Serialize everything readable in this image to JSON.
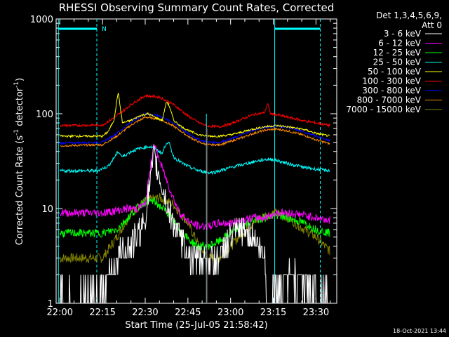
{
  "chart_data": {
    "type": "line",
    "title": "RHESSI Observing Summary Count Rates, Corrected",
    "xlabel": "Start Time (25-Jul-05 21:58:42)",
    "ylabel_main": "Corrected Count Rate (s",
    "ylabel_exp1": "-1",
    "ylabel_mid": " detector",
    "ylabel_exp2": "-1",
    "ylabel_end": ")",
    "yscale": "log",
    "ylim": [
      1,
      1000
    ],
    "xlim_minutes": [
      -1.3,
      37.3
    ],
    "x_tick_labels": [
      "22:00",
      "22:15",
      "22:30",
      "22:45",
      "23:00",
      "23:15",
      "23:30"
    ],
    "x_tick_minutes": [
      0,
      15,
      30,
      45,
      60,
      75,
      90
    ],
    "y_tick_labels": [
      "1",
      "10",
      "100",
      "1000"
    ],
    "y_tick_values": [
      1,
      10,
      100,
      1000
    ],
    "legend_header": [
      "Det 1,3,4,5,6,9,",
      "Att 0"
    ],
    "legend_position": "right",
    "footer": "18-Oct-2021 13:44",
    "night_marker_label": "N",
    "series": [
      {
        "name": "3 - 6 keV",
        "color": "#ffffff",
        "t": [
          0,
          12,
          15,
          20,
          24,
          27,
          30,
          33,
          38,
          42,
          46,
          49,
          52,
          56,
          60,
          64,
          68,
          72,
          73,
          76,
          80,
          86,
          90,
          95
        ],
        "v": [
          1.2,
          1.2,
          1.3,
          3,
          4,
          5,
          8,
          35,
          10,
          5,
          3,
          3,
          3,
          3,
          5,
          6,
          5,
          3,
          1,
          1.4,
          2,
          1.6,
          1.3,
          1.2
        ]
      },
      {
        "name": "6 - 12 keV",
        "color": "#ff00ff",
        "t": [
          0,
          15,
          20,
          24,
          27,
          30,
          33,
          38,
          42,
          46,
          49,
          52,
          56,
          60,
          64,
          68,
          72,
          76,
          80,
          86,
          90,
          95
        ],
        "v": [
          9,
          9,
          9.5,
          10,
          10,
          11,
          48,
          18,
          9,
          7,
          6.5,
          6.5,
          7,
          7,
          7.5,
          8,
          8,
          9,
          9,
          8.5,
          8,
          7.5
        ]
      },
      {
        "name": "12 - 25 keV",
        "color": "#00ff00",
        "t": [
          0,
          15,
          20,
          24,
          27,
          30,
          33,
          38,
          42,
          46,
          49,
          52,
          56,
          60,
          64,
          68,
          72,
          76,
          80,
          86,
          90,
          95
        ],
        "v": [
          5.5,
          5.5,
          6,
          8,
          10,
          12,
          12,
          9,
          6,
          4.5,
          4,
          4,
          4.5,
          5.5,
          6.5,
          7.5,
          8,
          8.5,
          8,
          7,
          6,
          5.5
        ]
      },
      {
        "name": "25 - 50 keV",
        "color": "#00ffff",
        "t": [
          0,
          13,
          17,
          19,
          20.5,
          22,
          25,
          28,
          31,
          33,
          36,
          37.5,
          38.5,
          40,
          43,
          46,
          49,
          52,
          54,
          56,
          60,
          64,
          68,
          72,
          75,
          78,
          82,
          86,
          90,
          95
        ],
        "v": [
          25,
          25,
          28,
          34,
          40,
          35,
          40,
          43,
          45,
          44,
          38,
          50,
          48,
          35,
          30,
          27,
          25,
          24,
          24,
          25,
          27,
          29,
          31,
          33,
          33,
          31,
          29,
          27,
          26,
          25
        ]
      },
      {
        "name": "50 - 100 keV",
        "color": "#ffff00",
        "t": [
          0,
          15,
          17,
          19,
          20.5,
          22,
          25,
          28,
          31,
          34,
          36,
          37.5,
          38.5,
          40,
          43,
          46,
          49,
          52,
          56,
          60,
          64,
          68,
          72,
          76,
          80,
          86,
          90,
          95
        ],
        "v": [
          58,
          58,
          65,
          85,
          170,
          80,
          85,
          95,
          100,
          90,
          85,
          135,
          120,
          85,
          72,
          65,
          60,
          58,
          58,
          60,
          64,
          69,
          73,
          75,
          73,
          68,
          62,
          58
        ]
      },
      {
        "name": "100 - 300 keV",
        "color": "#ff0000",
        "t": [
          0,
          15,
          20,
          25,
          30,
          35,
          40,
          45,
          49,
          52,
          56,
          60,
          64,
          68,
          72,
          73,
          74,
          76,
          80,
          86,
          90,
          95
        ],
        "v": [
          75,
          76,
          95,
          125,
          155,
          150,
          125,
          95,
          80,
          74,
          73,
          78,
          88,
          98,
          103,
          130,
          100,
          98,
          92,
          84,
          80,
          75
        ]
      },
      {
        "name": "300 - 800 keV",
        "color": "#0000ff",
        "t": [
          0,
          15,
          20,
          25,
          30,
          35,
          40,
          45,
          49,
          52,
          56,
          60,
          64,
          68,
          72,
          76,
          80,
          86,
          90,
          95
        ],
        "v": [
          49,
          50,
          62,
          82,
          100,
          95,
          80,
          62,
          53,
          50,
          50,
          54,
          60,
          67,
          72,
          74,
          72,
          64,
          58,
          52
        ]
      },
      {
        "name": "800 - 7000 keV",
        "color": "#ff8c00",
        "t": [
          0,
          15,
          20,
          25,
          30,
          35,
          40,
          45,
          49,
          52,
          56,
          60,
          64,
          68,
          72,
          76,
          80,
          86,
          90,
          95
        ],
        "v": [
          46,
          47,
          58,
          76,
          92,
          88,
          74,
          58,
          50,
          47,
          47,
          51,
          56,
          62,
          67,
          69,
          66,
          59,
          53,
          48
        ]
      },
      {
        "name": "7000 - 15000 keV",
        "color": "#808000",
        "t": [
          0,
          15,
          20,
          25,
          30,
          35,
          40,
          45,
          49,
          52,
          56,
          60,
          64,
          68,
          72,
          76,
          80,
          86,
          90,
          95
        ],
        "v": [
          3,
          3,
          5,
          9,
          12,
          13,
          11,
          7,
          4,
          3,
          3,
          4,
          5.5,
          7,
          8.5,
          9,
          8,
          6,
          5,
          3.5
        ]
      }
    ],
    "attenuator_state_markers": {
      "color": "#00ffff",
      "solid_at_minutes": [
        -0.5,
        75.5
      ],
      "dashed_at_minutes": [
        13,
        91.5
      ]
    }
  }
}
